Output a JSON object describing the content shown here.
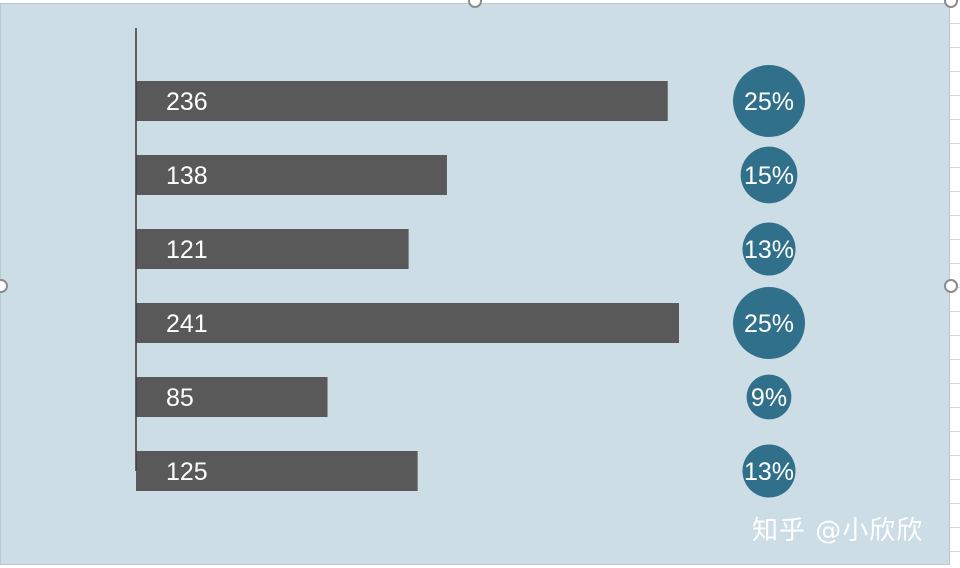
{
  "chart_data": {
    "type": "bar",
    "orientation": "horizontal",
    "values": [
      236,
      138,
      121,
      241,
      85,
      125
    ],
    "data_labels": [
      "236",
      "138",
      "121",
      "241",
      "85",
      "125"
    ],
    "percent_labels": [
      "25%",
      "15%",
      "13%",
      "25%",
      "9%",
      "13%"
    ],
    "percent_values": [
      25,
      15,
      13,
      25,
      9,
      13
    ],
    "xlim": [
      0,
      241
    ],
    "grid": false,
    "legend": "none",
    "colors": {
      "bar": "#595959",
      "bubble": "#31708a",
      "label": "#ffffff",
      "axis": "#404040"
    }
  },
  "watermark": "知乎 @小欣欣"
}
